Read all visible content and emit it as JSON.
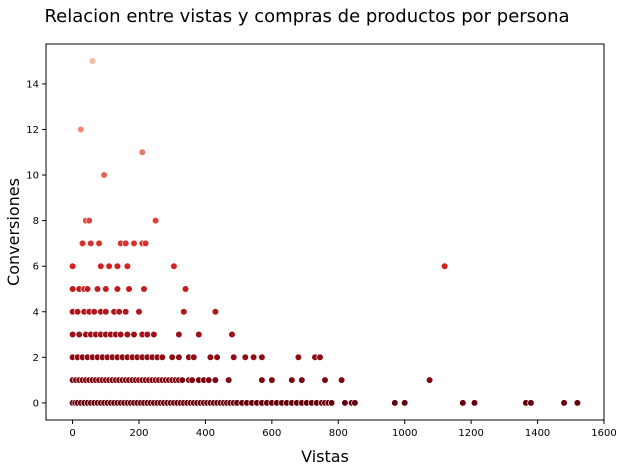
{
  "chart_data": {
    "type": "scatter",
    "title": "Relacion entre vistas y compras de productos por persona",
    "xlabel": "Vistas",
    "ylabel": "Conversiones",
    "xlim": [
      -80,
      1600
    ],
    "ylim": [
      -0.75,
      15.75
    ],
    "xticks": [
      "0",
      "200",
      "400",
      "600",
      "800",
      "1000",
      "1200",
      "1400",
      "1600"
    ],
    "yticks": [
      "0",
      "2",
      "4",
      "6",
      "8",
      "10",
      "12",
      "14"
    ],
    "grid": false,
    "colormap": "Reds",
    "colors": {
      "dark": "#67000d",
      "mid": "#d42020",
      "light": "#fcbba1"
    },
    "points": [
      [
        0,
        0
      ],
      [
        8,
        0
      ],
      [
        15,
        0
      ],
      [
        25,
        0
      ],
      [
        35,
        0
      ],
      [
        45,
        0
      ],
      [
        55,
        0
      ],
      [
        65,
        0
      ],
      [
        75,
        0
      ],
      [
        85,
        0
      ],
      [
        95,
        0
      ],
      [
        105,
        0
      ],
      [
        115,
        0
      ],
      [
        125,
        0
      ],
      [
        135,
        0
      ],
      [
        145,
        0
      ],
      [
        155,
        0
      ],
      [
        165,
        0
      ],
      [
        175,
        0
      ],
      [
        185,
        0
      ],
      [
        195,
        0
      ],
      [
        205,
        0
      ],
      [
        215,
        0
      ],
      [
        225,
        0
      ],
      [
        235,
        0
      ],
      [
        245,
        0
      ],
      [
        255,
        0
      ],
      [
        265,
        0
      ],
      [
        275,
        0
      ],
      [
        285,
        0
      ],
      [
        295,
        0
      ],
      [
        305,
        0
      ],
      [
        315,
        0
      ],
      [
        325,
        0
      ],
      [
        335,
        0
      ],
      [
        345,
        0
      ],
      [
        355,
        0
      ],
      [
        365,
        0
      ],
      [
        375,
        0
      ],
      [
        385,
        0
      ],
      [
        395,
        0
      ],
      [
        405,
        0
      ],
      [
        415,
        0
      ],
      [
        425,
        0
      ],
      [
        435,
        0
      ],
      [
        445,
        0
      ],
      [
        455,
        0
      ],
      [
        465,
        0
      ],
      [
        475,
        0
      ],
      [
        485,
        0
      ],
      [
        495,
        0
      ],
      [
        510,
        0
      ],
      [
        525,
        0
      ],
      [
        540,
        0
      ],
      [
        555,
        0
      ],
      [
        570,
        0
      ],
      [
        585,
        0
      ],
      [
        600,
        0
      ],
      [
        615,
        0
      ],
      [
        630,
        0
      ],
      [
        645,
        0
      ],
      [
        660,
        0
      ],
      [
        675,
        0
      ],
      [
        690,
        0
      ],
      [
        705,
        0
      ],
      [
        720,
        0
      ],
      [
        735,
        0
      ],
      [
        750,
        0
      ],
      [
        760,
        0
      ],
      [
        770,
        0
      ],
      [
        780,
        0
      ],
      [
        820,
        0
      ],
      [
        840,
        0
      ],
      [
        850,
        0
      ],
      [
        970,
        0
      ],
      [
        1000,
        0
      ],
      [
        1175,
        0
      ],
      [
        1210,
        0
      ],
      [
        1365,
        0
      ],
      [
        1380,
        0
      ],
      [
        1480,
        0
      ],
      [
        1520,
        0
      ],
      [
        0,
        1
      ],
      [
        10,
        1
      ],
      [
        20,
        1
      ],
      [
        30,
        1
      ],
      [
        40,
        1
      ],
      [
        50,
        1
      ],
      [
        60,
        1
      ],
      [
        70,
        1
      ],
      [
        80,
        1
      ],
      [
        90,
        1
      ],
      [
        100,
        1
      ],
      [
        110,
        1
      ],
      [
        120,
        1
      ],
      [
        130,
        1
      ],
      [
        140,
        1
      ],
      [
        150,
        1
      ],
      [
        160,
        1
      ],
      [
        170,
        1
      ],
      [
        180,
        1
      ],
      [
        190,
        1
      ],
      [
        200,
        1
      ],
      [
        210,
        1
      ],
      [
        220,
        1
      ],
      [
        230,
        1
      ],
      [
        240,
        1
      ],
      [
        250,
        1
      ],
      [
        260,
        1
      ],
      [
        270,
        1
      ],
      [
        280,
        1
      ],
      [
        290,
        1
      ],
      [
        300,
        1
      ],
      [
        310,
        1
      ],
      [
        320,
        1
      ],
      [
        330,
        1
      ],
      [
        350,
        1
      ],
      [
        360,
        1
      ],
      [
        380,
        1
      ],
      [
        395,
        1
      ],
      [
        410,
        1
      ],
      [
        430,
        1
      ],
      [
        470,
        1
      ],
      [
        570,
        1
      ],
      [
        600,
        1
      ],
      [
        660,
        1
      ],
      [
        690,
        1
      ],
      [
        760,
        1
      ],
      [
        810,
        1
      ],
      [
        1075,
        1
      ],
      [
        0,
        2
      ],
      [
        15,
        2
      ],
      [
        30,
        2
      ],
      [
        45,
        2
      ],
      [
        60,
        2
      ],
      [
        75,
        2
      ],
      [
        90,
        2
      ],
      [
        105,
        2
      ],
      [
        120,
        2
      ],
      [
        135,
        2
      ],
      [
        150,
        2
      ],
      [
        165,
        2
      ],
      [
        180,
        2
      ],
      [
        195,
        2
      ],
      [
        210,
        2
      ],
      [
        225,
        2
      ],
      [
        240,
        2
      ],
      [
        255,
        2
      ],
      [
        270,
        2
      ],
      [
        300,
        2
      ],
      [
        320,
        2
      ],
      [
        350,
        2
      ],
      [
        365,
        2
      ],
      [
        415,
        2
      ],
      [
        435,
        2
      ],
      [
        485,
        2
      ],
      [
        520,
        2
      ],
      [
        545,
        2
      ],
      [
        570,
        2
      ],
      [
        680,
        2
      ],
      [
        730,
        2
      ],
      [
        745,
        2
      ],
      [
        0,
        3
      ],
      [
        20,
        3
      ],
      [
        40,
        3
      ],
      [
        55,
        3
      ],
      [
        70,
        3
      ],
      [
        85,
        3
      ],
      [
        100,
        3
      ],
      [
        115,
        3
      ],
      [
        130,
        3
      ],
      [
        145,
        3
      ],
      [
        165,
        3
      ],
      [
        185,
        3
      ],
      [
        210,
        3
      ],
      [
        225,
        3
      ],
      [
        245,
        3
      ],
      [
        320,
        3
      ],
      [
        380,
        3
      ],
      [
        480,
        3
      ],
      [
        0,
        4
      ],
      [
        15,
        4
      ],
      [
        35,
        4
      ],
      [
        50,
        4
      ],
      [
        65,
        4
      ],
      [
        85,
        4
      ],
      [
        100,
        4
      ],
      [
        125,
        4
      ],
      [
        140,
        4
      ],
      [
        160,
        4
      ],
      [
        200,
        4
      ],
      [
        335,
        4
      ],
      [
        430,
        4
      ],
      [
        0,
        5
      ],
      [
        20,
        5
      ],
      [
        35,
        5
      ],
      [
        45,
        5
      ],
      [
        75,
        5
      ],
      [
        100,
        5
      ],
      [
        135,
        5
      ],
      [
        170,
        5
      ],
      [
        215,
        5
      ],
      [
        340,
        5
      ],
      [
        0,
        6
      ],
      [
        85,
        6
      ],
      [
        110,
        6
      ],
      [
        135,
        6
      ],
      [
        165,
        6
      ],
      [
        305,
        6
      ],
      [
        1120,
        6
      ],
      [
        30,
        7
      ],
      [
        55,
        7
      ],
      [
        80,
        7
      ],
      [
        145,
        7
      ],
      [
        160,
        7
      ],
      [
        185,
        7
      ],
      [
        210,
        7
      ],
      [
        220,
        7
      ],
      [
        40,
        8
      ],
      [
        50,
        8
      ],
      [
        250,
        8
      ],
      [
        95,
        10
      ],
      [
        210,
        11
      ],
      [
        25,
        12
      ],
      [
        60,
        15
      ]
    ]
  }
}
